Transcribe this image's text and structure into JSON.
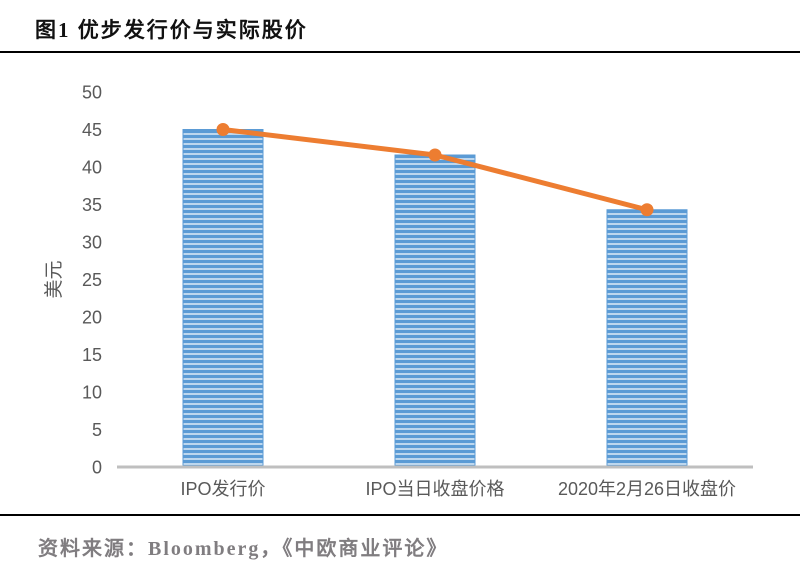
{
  "page": {
    "title": "图1 优步发行价与实际股价",
    "source_note": "资料来源：Bloomberg，《中欧商业评论》"
  },
  "chart_data": {
    "type": "bar",
    "subtype": "vertical bars with line overlay on same values",
    "title": "图1 优步发行价与实际股价",
    "categories": [
      "IPO发行价",
      "IPO当日收盘价格",
      "2020年2月26日收盘价"
    ],
    "series": [
      {
        "type": "bar",
        "values": [
          45,
          41.6,
          34.3
        ]
      },
      {
        "type": "line",
        "values": [
          45,
          41.6,
          34.3
        ]
      }
    ],
    "xlabel": "",
    "ylabel": "美元",
    "ylim": [
      0,
      50
    ],
    "ytick_step": 5,
    "yticks": [
      0,
      5,
      10,
      15,
      20,
      25,
      30,
      35,
      40,
      45,
      50
    ],
    "grid": false,
    "legend": false,
    "colors": {
      "bar_stripe_dark": "#5B9BD5",
      "bar_stripe_light": "#BDD7EE",
      "line": "#ED7D31",
      "axis_line": "#BFBFBF",
      "tick_label": "#595959"
    }
  }
}
